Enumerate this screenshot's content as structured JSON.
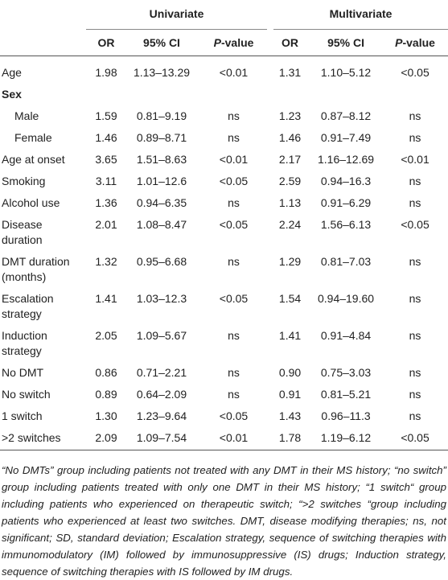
{
  "header": {
    "groups": [
      "Univariate",
      "Multivariate"
    ],
    "columns": [
      "OR",
      "95% CI",
      "P-value",
      "OR",
      "95% CI",
      "P-value"
    ]
  },
  "table": {
    "rows": [
      {
        "label": "Age",
        "values": [
          "1.98",
          "1.13–13.29",
          "<0.01",
          "1.31",
          "1.10–5.12",
          "<0.05"
        ]
      },
      {
        "label": "Sex",
        "rows": [
          {
            "label": "Male",
            "values": [
              "1.59",
              "0.81–9.19",
              "ns",
              "1.23",
              "0.87–8.12",
              "ns"
            ]
          },
          {
            "label": "Female",
            "values": [
              "1.46",
              "0.89–8.71",
              "ns",
              "1.46",
              "0.91–7.49",
              "ns"
            ]
          }
        ]
      },
      {
        "label": "Age at onset",
        "values": [
          "3.65",
          "1.51–8.63",
          "<0.01",
          "2.17",
          "1.16–12.69",
          "<0.01"
        ]
      },
      {
        "label": "Smoking",
        "values": [
          "3.11",
          "1.01–12.6",
          "<0.05",
          "2.59",
          "0.94–16.3",
          "ns"
        ]
      },
      {
        "label": "Alcohol use",
        "values": [
          "1.36",
          "0.94–6.35",
          "ns",
          "1.13",
          "0.91–6.29",
          "ns"
        ]
      },
      {
        "label": "Disease duration",
        "values": [
          "2.01",
          "1.08–8.47",
          "<0.05",
          "2.24",
          "1.56–6.13",
          "<0.05"
        ]
      },
      {
        "label": "DMT duration (months)",
        "values": [
          "1.32",
          "0.95–6.68",
          "ns",
          "1.29",
          "0.81–7.03",
          "ns"
        ]
      },
      {
        "label": "Escalation strategy",
        "values": [
          "1.41",
          "1.03–12.3",
          "<0.05",
          "1.54",
          "0.94–19.60",
          "ns"
        ]
      },
      {
        "label": "Induction strategy",
        "values": [
          "2.05",
          "1.09–5.67",
          "ns",
          "1.41",
          "0.91–4.84",
          "ns"
        ]
      },
      {
        "label": "No DMT",
        "values": [
          "0.86",
          "0.71–2.21",
          "ns",
          "0.90",
          "0.75–3.03",
          "ns"
        ]
      },
      {
        "label": "No switch",
        "values": [
          "0.89",
          "0.64–2.09",
          "ns",
          "0.91",
          "0.81–5.21",
          "ns"
        ]
      },
      {
        "label": "1 switch",
        "values": [
          "1.30",
          "1.23–9.64",
          "<0.05",
          "1.43",
          "0.96–11.3",
          "ns"
        ]
      },
      {
        "label": ">2 switches",
        "values": [
          "2.09",
          "1.09–7.54",
          "<0.01",
          "1.78",
          "1.19–6.12",
          "<0.05"
        ]
      }
    ]
  },
  "footnote": "“No DMTs” group including patients not treated with any DMT in their MS history; “no switch” group including patients treated with only one DMT in their MS history; “1 switch“ group including patients who experienced on therapeutic switch; “>2 switches “group including patients who experienced at least two switches. DMT, disease modifying therapies; ns, not significant; SD, standard deviation; Escalation strategy, sequence of switching therapies with immunomodulatory (IM) followed by immunosuppressive (IS) drugs; Induction strategy, sequence of switching therapies with IS followed by IM drugs."
}
